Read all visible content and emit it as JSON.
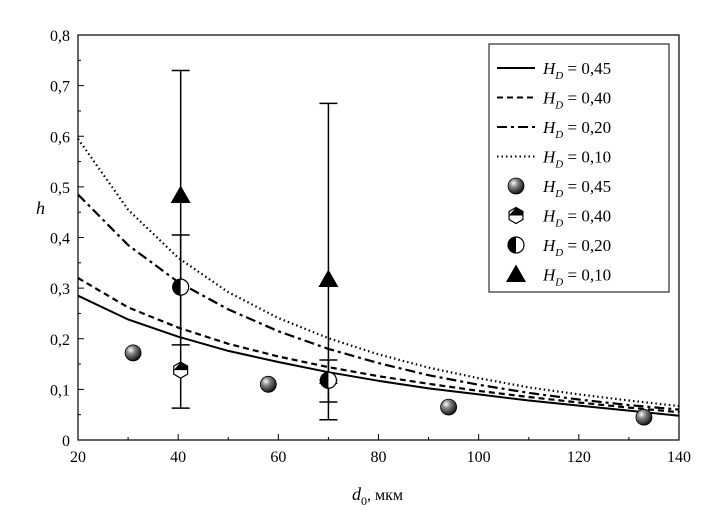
{
  "chart_data": {
    "type": "scatter",
    "xlabel": "d",
    "xlabel_sub": "0",
    "xlabel_unit": ", мкм",
    "ylabel": "h",
    "xlim": [
      20,
      140
    ],
    "ylim": [
      0,
      0.8
    ],
    "x_ticks": [
      20,
      40,
      60,
      80,
      100,
      120,
      140
    ],
    "x_tick_labels": [
      "20",
      "40",
      "60",
      "80",
      "100",
      "120",
      "140"
    ],
    "y_ticks": [
      0,
      0.1,
      0.2,
      0.3,
      0.4,
      0.5,
      0.6,
      0.7,
      0.8
    ],
    "y_tick_labels": [
      "0",
      "0,1",
      "0,2",
      "0,3",
      "0,4",
      "0,5",
      "0,6",
      "0,7",
      "0,8"
    ],
    "grid": false,
    "legend_position": "top-right",
    "lines": [
      {
        "legend_main": "H",
        "legend_sub": "D",
        "legend_value": " = 0,45",
        "style": "solid",
        "x": [
          20,
          30,
          40,
          50,
          60,
          70,
          80,
          90,
          100,
          110,
          120,
          130,
          140
        ],
        "y": [
          0.285,
          0.238,
          0.204,
          0.176,
          0.154,
          0.134,
          0.117,
          0.102,
          0.09,
          0.078,
          0.068,
          0.058,
          0.048
        ]
      },
      {
        "legend_main": "H",
        "legend_sub": "D",
        "legend_value": " = 0,40",
        "style": "dashed",
        "x": [
          20,
          30,
          40,
          50,
          60,
          70,
          80,
          90,
          100,
          110,
          120,
          130,
          140
        ],
        "y": [
          0.32,
          0.262,
          0.222,
          0.19,
          0.165,
          0.144,
          0.126,
          0.111,
          0.097,
          0.085,
          0.074,
          0.064,
          0.055
        ]
      },
      {
        "legend_main": "H",
        "legend_sub": "D",
        "legend_value": " = 0,20",
        "style": "dashdot",
        "x": [
          20,
          30,
          40,
          50,
          60,
          70,
          80,
          90,
          100,
          110,
          120,
          130,
          140
        ],
        "y": [
          0.485,
          0.385,
          0.312,
          0.258,
          0.215,
          0.18,
          0.152,
          0.128,
          0.109,
          0.093,
          0.08,
          0.069,
          0.06
        ]
      },
      {
        "legend_main": "H",
        "legend_sub": "D",
        "legend_value": " = 0,10",
        "style": "dotted",
        "x": [
          20,
          30,
          40,
          50,
          60,
          70,
          80,
          90,
          100,
          110,
          120,
          130,
          140
        ],
        "y": [
          0.595,
          0.455,
          0.36,
          0.292,
          0.241,
          0.201,
          0.169,
          0.143,
          0.122,
          0.104,
          0.09,
          0.078,
          0.067
        ]
      }
    ],
    "points": [
      {
        "legend_main": "H",
        "legend_sub": "D",
        "legend_value": " = 0,45",
        "marker": "sphere",
        "x": [
          31,
          58,
          94,
          133
        ],
        "y": [
          0.172,
          0.11,
          0.065,
          0.045
        ]
      },
      {
        "legend_main": "H",
        "legend_sub": "D",
        "legend_value": " = 0,40",
        "marker": "hexagon-half",
        "x": [
          40.5,
          70
        ],
        "y": [
          0.138,
          0.118
        ],
        "errors": [
          [
            0.138,
            0.138
          ],
          [
            0.112,
            0.118
          ]
        ]
      },
      {
        "legend_main": "H",
        "legend_sub": "D",
        "legend_value": " = 0,20",
        "marker": "circle-half",
        "x": [
          40.5,
          70
        ],
        "y": [
          0.302,
          0.118
        ],
        "errors": [
          [
            0.405,
            0.188
          ],
          [
            0.158,
            0.075
          ]
        ]
      },
      {
        "legend_main": "H",
        "legend_sub": "D",
        "legend_value": " = 0,10",
        "marker": "triangle",
        "x": [
          40.5,
          70
        ],
        "y": [
          0.483,
          0.317
        ],
        "errors": [
          [
            0.73,
            0.063
          ],
          [
            0.665,
            0.04
          ]
        ]
      }
    ]
  }
}
